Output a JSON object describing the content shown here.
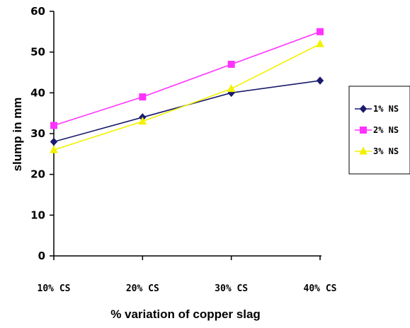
{
  "chart_data": {
    "type": "line",
    "xlabel": "% variation of copper slag",
    "ylabel": "slump in mm",
    "categories": [
      "10% CS",
      "20% CS",
      "30% CS",
      "40% CS"
    ],
    "ylim": [
      0,
      60
    ],
    "yticks": [
      0,
      10,
      20,
      30,
      40,
      50,
      60
    ],
    "grid": false,
    "legend_position": "right",
    "series": [
      {
        "name": "1% NS",
        "values": [
          28,
          34,
          40,
          43
        ],
        "color": "#1a1a6e",
        "marker": "diamond"
      },
      {
        "name": "2% NS",
        "values": [
          32,
          39,
          47,
          55
        ],
        "color": "#ff33ff",
        "marker": "square"
      },
      {
        "name": "3% NS",
        "values": [
          26,
          33,
          41,
          52
        ],
        "color": "#f2f200",
        "marker": "triangle"
      }
    ]
  }
}
